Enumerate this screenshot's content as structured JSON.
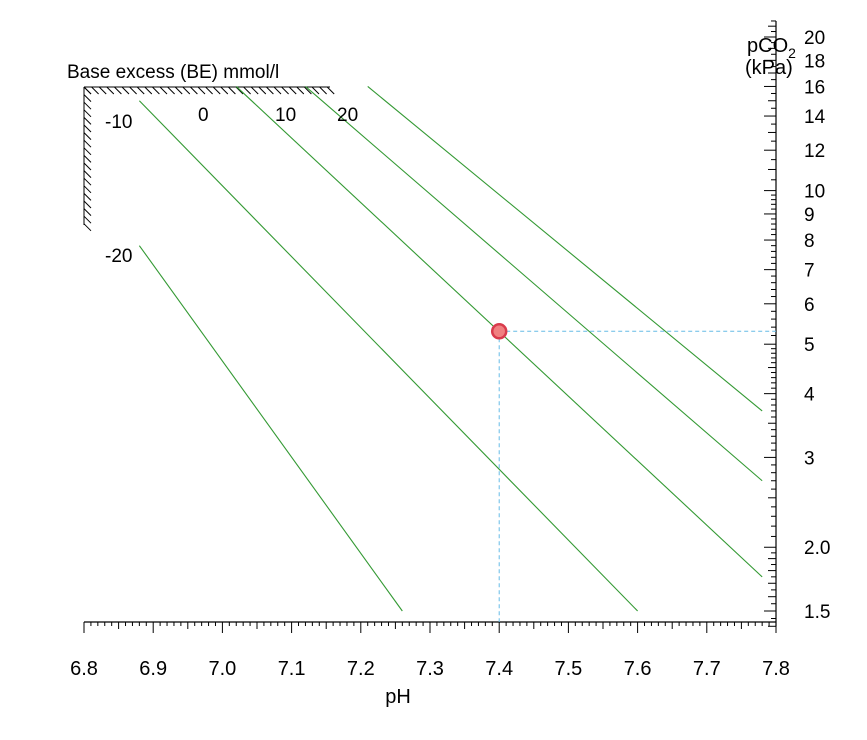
{
  "chart_data": {
    "type": "line",
    "xlabel": "pH",
    "ylabel_main": "pCO",
    "ylabel_sub": "2",
    "ylabel_unit": "(kPa)",
    "be_label": "Base excess (BE) mmol/l",
    "xlim": [
      6.8,
      7.8
    ],
    "ylim": [
      1.4,
      21.5
    ],
    "y_scale": "log",
    "x_ticks": [
      6.8,
      6.9,
      7.0,
      7.1,
      7.2,
      7.3,
      7.4,
      7.5,
      7.6,
      7.7,
      7.8
    ],
    "x_tick_labels": [
      "6.8",
      "6.9",
      "7.0",
      "7.1",
      "7.2",
      "7.3",
      "7.4",
      "7.5",
      "7.6",
      "7.7",
      "7.8"
    ],
    "y_ticks": [
      20,
      18,
      16,
      14,
      12,
      10,
      9,
      8,
      7,
      6,
      5,
      4,
      3,
      2.0,
      1.5
    ],
    "y_tick_labels": [
      "20",
      "18",
      "16",
      "14",
      "12",
      "10",
      "9",
      "8",
      "7",
      "6",
      "5",
      "4",
      "3",
      "2.0",
      "1.5"
    ],
    "series": [
      {
        "name": "-20",
        "x": [
          6.88,
          7.26
        ],
        "y": [
          7.8,
          1.5
        ]
      },
      {
        "name": "-10",
        "x": [
          6.88,
          7.6
        ],
        "y": [
          15.0,
          1.5
        ]
      },
      {
        "name": "0",
        "x": [
          7.02,
          7.78
        ],
        "y": [
          16.0,
          1.75
        ]
      },
      {
        "name": "10",
        "x": [
          7.12,
          7.78
        ],
        "y": [
          16.0,
          2.7
        ]
      },
      {
        "name": "20",
        "x": [
          7.21,
          7.78
        ],
        "y": [
          16.0,
          3.7
        ]
      }
    ],
    "marker": {
      "x": 7.4,
      "y": 5.3
    },
    "colors": {
      "lines": "#339933",
      "marker_fill": "#f08080",
      "marker_stroke": "#d93b4c",
      "guide": "#66bbe6",
      "axis": "#000000"
    }
  }
}
